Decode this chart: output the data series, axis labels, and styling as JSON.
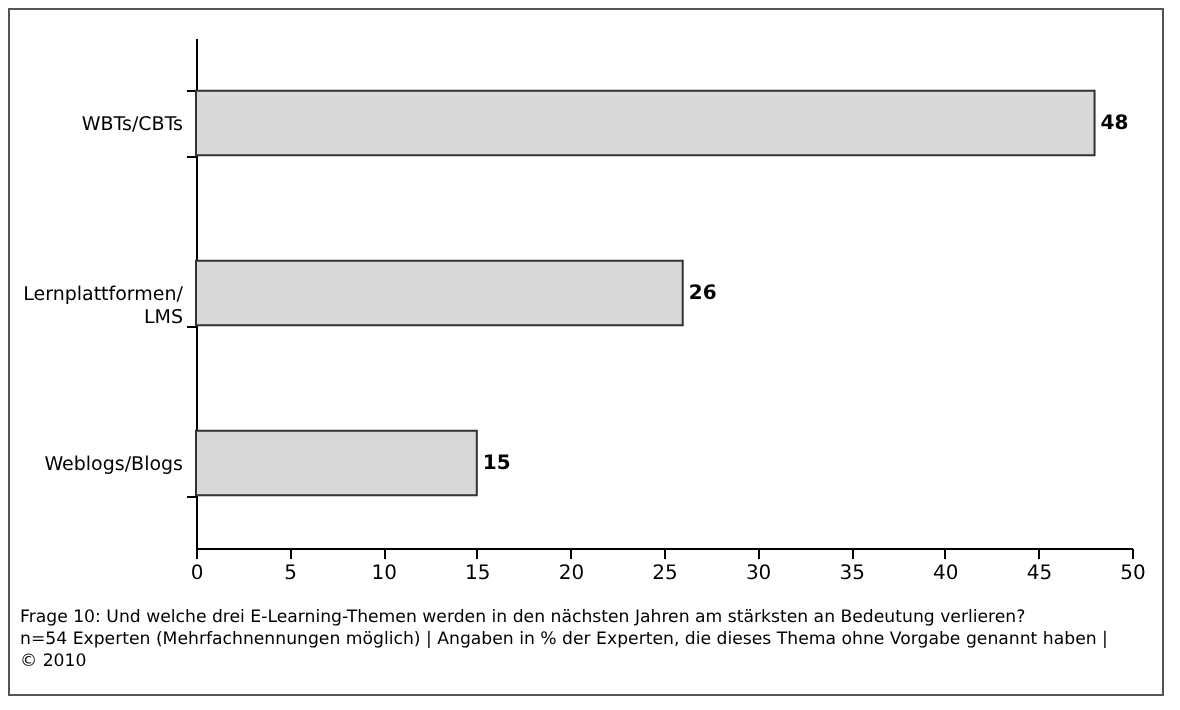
{
  "chart_data": {
    "type": "bar",
    "orientation": "horizontal",
    "categories": [
      "WBTs/CBTs",
      "Lernplattformen/ LMS",
      "Weblogs/Blogs"
    ],
    "values": [
      48,
      26,
      15
    ],
    "color": "#d9d9d9",
    "xlim": [
      0,
      50
    ],
    "xticks": [
      0,
      5,
      10,
      15,
      20,
      25,
      30,
      35,
      40,
      45,
      50
    ],
    "data_labels": true,
    "annotations": [
      "Frage 10: Und welche drei E-Learning-Themen werden in den nächsten Jahren am stärksten an Bedeutung verlieren?",
      "n=54 Experten (Mehrfachnennungen möglich) | Angaben in % der Experten, die dieses Thema ohne Vorgabe genannt haben |",
      "© 2010"
    ]
  }
}
